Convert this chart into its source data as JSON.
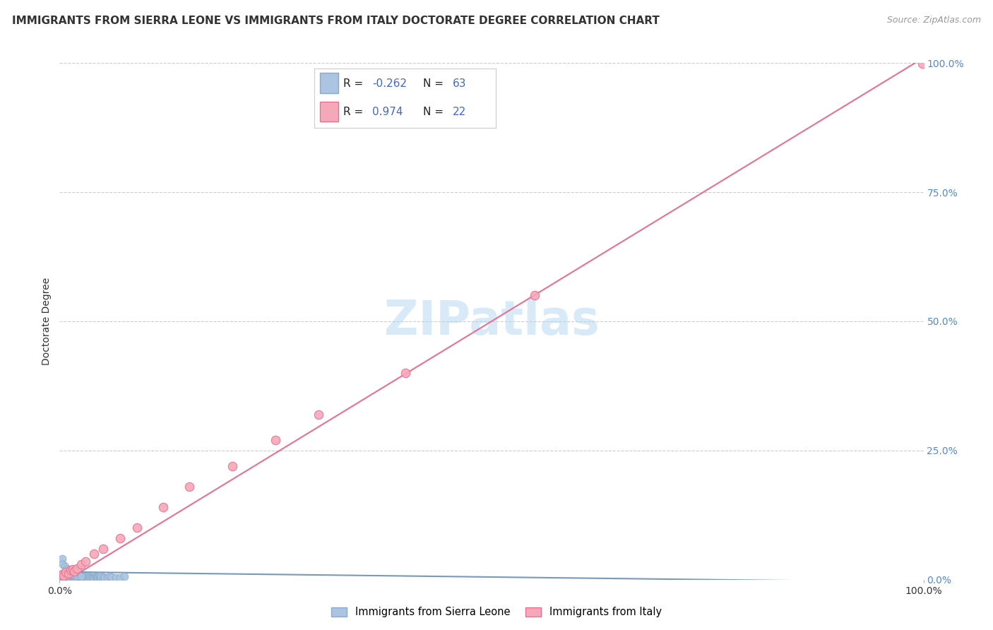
{
  "title": "IMMIGRANTS FROM SIERRA LEONE VS IMMIGRANTS FROM ITALY DOCTORATE DEGREE CORRELATION CHART",
  "source": "Source: ZipAtlas.com",
  "ylabel": "Doctorate Degree",
  "xlim": [
    0.0,
    1.0
  ],
  "ylim": [
    0.0,
    1.0
  ],
  "blue_R": "-0.262",
  "blue_N": "63",
  "pink_R": "0.974",
  "pink_N": "22",
  "blue_color": "#aac4e2",
  "blue_edge_color": "#88aacc",
  "pink_color": "#f5a8b8",
  "pink_edge_color": "#e87090",
  "blue_line_color": "#7799bb",
  "pink_line_color": "#e87090",
  "grid_color": "#cccccc",
  "background_color": "#ffffff",
  "watermark": "ZIPatlas",
  "watermark_color": "#d8eaf8",
  "tick_color_right": "#5588cc",
  "title_color": "#333333",
  "source_color": "#999999",
  "legend_text_color": "#333333",
  "legend_R_color": "#4466cc",
  "legend_N_color": "#4466cc",
  "sierra_leone_x": [
    0.003,
    0.004,
    0.005,
    0.006,
    0.007,
    0.008,
    0.009,
    0.01,
    0.011,
    0.012,
    0.013,
    0.014,
    0.015,
    0.016,
    0.017,
    0.018,
    0.019,
    0.02,
    0.021,
    0.022,
    0.023,
    0.024,
    0.025,
    0.026,
    0.027,
    0.028,
    0.029,
    0.03,
    0.031,
    0.032,
    0.033,
    0.034,
    0.035,
    0.036,
    0.037,
    0.038,
    0.039,
    0.04,
    0.041,
    0.042,
    0.043,
    0.044,
    0.045,
    0.046,
    0.047,
    0.048,
    0.05,
    0.052,
    0.055,
    0.058,
    0.06,
    0.065,
    0.07,
    0.075,
    0.003,
    0.004,
    0.006,
    0.008,
    0.01,
    0.012,
    0.015,
    0.02,
    0.025
  ],
  "sierra_leone_y": [
    0.003,
    0.004,
    0.003,
    0.005,
    0.004,
    0.003,
    0.006,
    0.004,
    0.005,
    0.003,
    0.004,
    0.006,
    0.005,
    0.003,
    0.004,
    0.005,
    0.003,
    0.004,
    0.006,
    0.005,
    0.003,
    0.004,
    0.005,
    0.003,
    0.004,
    0.006,
    0.003,
    0.004,
    0.005,
    0.003,
    0.004,
    0.006,
    0.005,
    0.003,
    0.004,
    0.005,
    0.003,
    0.004,
    0.006,
    0.005,
    0.003,
    0.004,
    0.005,
    0.003,
    0.004,
    0.006,
    0.005,
    0.003,
    0.004,
    0.006,
    0.005,
    0.003,
    0.004,
    0.006,
    0.04,
    0.03,
    0.025,
    0.02,
    0.015,
    0.012,
    0.01,
    0.008,
    0.006
  ],
  "italy_x": [
    0.003,
    0.005,
    0.007,
    0.01,
    0.013,
    0.015,
    0.017,
    0.02,
    0.025,
    0.03,
    0.04,
    0.05,
    0.07,
    0.09,
    0.12,
    0.15,
    0.2,
    0.25,
    0.3,
    0.4,
    0.55,
    0.999
  ],
  "italy_y": [
    0.01,
    0.008,
    0.015,
    0.012,
    0.018,
    0.02,
    0.016,
    0.022,
    0.03,
    0.035,
    0.05,
    0.06,
    0.08,
    0.1,
    0.14,
    0.18,
    0.22,
    0.27,
    0.32,
    0.4,
    0.55,
    0.999
  ],
  "blue_line_x": [
    0.0,
    1.0
  ],
  "blue_line_y": [
    0.015,
    -0.005
  ],
  "pink_line_x": [
    0.0,
    1.0
  ],
  "pink_line_y": [
    -0.01,
    1.01
  ],
  "title_fontsize": 11,
  "axis_label_fontsize": 10,
  "tick_fontsize": 10,
  "watermark_fontsize": 48,
  "dot_size_blue": 60,
  "dot_size_pink": 80
}
